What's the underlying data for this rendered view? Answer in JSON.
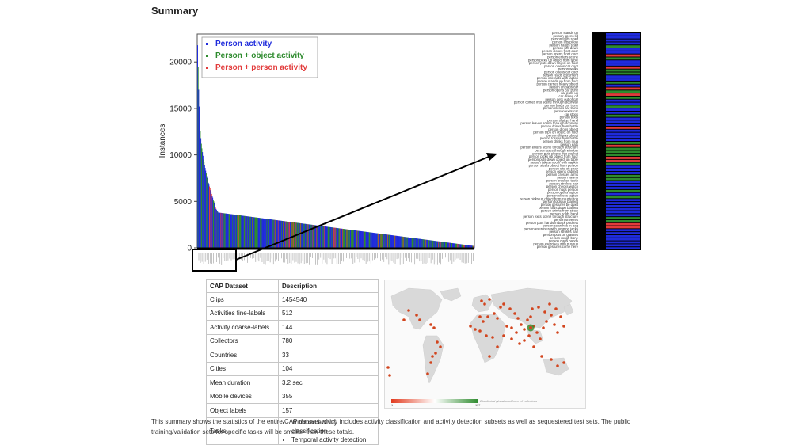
{
  "header": {
    "title": "Summary"
  },
  "chart_data": {
    "type": "bar",
    "ylabel": "Instances",
    "ylim": [
      0,
      23000
    ],
    "yticks": [
      0,
      5000,
      10000,
      15000,
      20000
    ],
    "grid": false,
    "legend_position": "top-left",
    "series": [
      {
        "name": "Person activity",
        "color": "#1f2bdc"
      },
      {
        "name": "Person + object activity",
        "color": "#2e8b2e"
      },
      {
        "name": "Person + person activity",
        "color": "#e23b3b"
      }
    ],
    "bar_count": 512,
    "sorted_descending": true,
    "values_approx": [
      21800,
      19500,
      17000,
      15200,
      13800,
      12600,
      11800,
      11200,
      10700,
      10300,
      9900,
      9500,
      9200,
      8900,
      8600,
      8300,
      8000,
      7700,
      7500,
      7200,
      7000,
      6800,
      6600,
      6400,
      6200,
      6000,
      5800,
      5600,
      5400,
      5200,
      5000,
      4800,
      4600,
      4400,
      4200,
      4100,
      4000,
      3900
    ],
    "tail_values_approx": [
      3800,
      3500,
      3200,
      2900,
      2600,
      2300,
      2000,
      1700,
      1400,
      1100,
      800,
      500,
      200
    ]
  },
  "zoom_panel": {
    "labels": [
      "person stands up",
      "person opens lid",
      "person folds scarf",
      "person lifts pillow",
      "person hangs scarf",
      "person sits down",
      "person closes front door",
      "person opens front door",
      "person enters scene",
      "person picks up object from table",
      "person puts down object on floor",
      "person opens car door",
      "person walks",
      "person opens car door",
      "person reads document",
      "person interacts with laptop",
      "person stands up from floor",
      "person carries heavy object",
      "person unloads car",
      "person opens car trunk",
      "car pulls up",
      "car drives off",
      "person gets out of car",
      "person comes into scene through doorway",
      "person loads car trunk",
      "person closes car trunk",
      "person exits car",
      "car stops",
      "person texts",
      "person shakes hand",
      "person leaves scene through doorway",
      "person drinks from bottle",
      "person drops object",
      "person trips on object on floor",
      "person throws object",
      "person tosses from bottle",
      "person drinks from mug",
      "person eats",
      "person enters scene through structure",
      "person uses through window",
      "person puts phone into pocket",
      "person picks up object from floor",
      "person puts down object on table",
      "person takes mouth with napkin",
      "person steals object from person",
      "person sits on chair",
      "person opens cabinet",
      "person crosses arms",
      "person yawns",
      "person brushes teeth",
      "person strokes hair",
      "person checks watch",
      "person hugs person",
      "person opens laptop",
      "person closes laptop",
      "person picks up object from countertop",
      "person folds up blanket",
      "person gestures be quiet",
      "person folds down blanket",
      "person drinks from straw",
      "person holds hand",
      "person exits scene through structure",
      "person sneezes",
      "person puts hands in back pockets",
      "person searches in bag",
      "person exercises with jumping jacks",
      "person strokes hair",
      "person puts on glasses",
      "person rough bone",
      "person claps hands",
      "person exercises with pushup",
      "person gestures come here"
    ]
  },
  "table": {
    "headers": [
      "CAP Dataset",
      "Description"
    ],
    "rows": [
      {
        "label": "Clips",
        "value": "1454540"
      },
      {
        "label": "Activities fine-labels",
        "value": "512"
      },
      {
        "label": "Activity coarse-labels",
        "value": "144"
      },
      {
        "label": "Collectors",
        "value": "780"
      },
      {
        "label": "Countries",
        "value": "33"
      },
      {
        "label": "Cities",
        "value": "104"
      },
      {
        "label": "Mean duration",
        "value": "3.2 sec"
      },
      {
        "label": "Mobile devices",
        "value": "355"
      },
      {
        "label": "Object labels",
        "value": "157"
      }
    ],
    "tasks_label": "Tasks",
    "tasks": [
      "Trimmed activity classification",
      "Temporal activity detection"
    ]
  },
  "map": {
    "caption": "Distributed global workforce of collectors",
    "scale_min": "1",
    "scale_max": "117",
    "scale_colors": [
      "#e23b1f",
      "#ffffff",
      "#2e8b2e"
    ]
  },
  "footer": {
    "text": "This summary shows the statistics of the entire CAP dataset which includes activity classification and activity detection subsets as well as sequestered test sets. The public training/validation sets for specific tasks will be smaller than these totals."
  }
}
